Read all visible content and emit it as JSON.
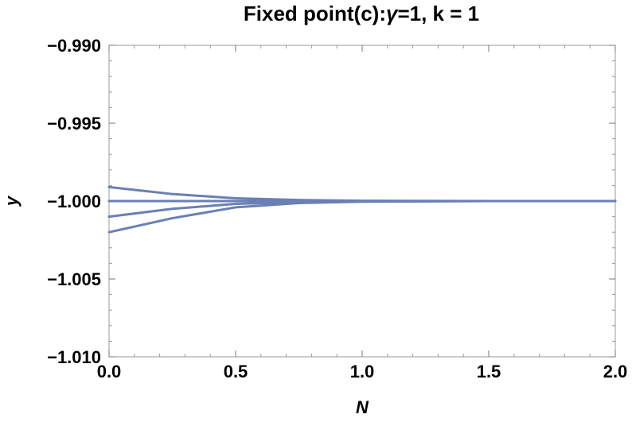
{
  "chart_data": {
    "type": "line",
    "title_main": "Fixed point(c):",
    "title_symbol": "γ",
    "title_rest": "=1, k = 1",
    "xlabel": "N",
    "ylabel": "y",
    "xlim": [
      0,
      2
    ],
    "ylim": [
      -1.01,
      -0.99
    ],
    "xticks": [
      0,
      0.5,
      1,
      1.5,
      2
    ],
    "xtick_labels": [
      "0.0",
      "0.5",
      "1.0",
      "1.5",
      "2.0"
    ],
    "yticks": [
      -0.99,
      -0.995,
      -1.0,
      -1.005,
      -1.01
    ],
    "ytick_labels": [
      "−0.990",
      "−0.995",
      "−1.000",
      "−1.005",
      "−1.010"
    ],
    "grid": false,
    "line_color": "#6a7fb3",
    "series": [
      {
        "x": [
          0,
          0.25,
          0.5,
          0.75,
          1.0,
          1.5,
          2.0
        ],
        "y": [
          -0.9991,
          -0.99955,
          -0.99982,
          -0.99993,
          -0.99998,
          -1.0,
          -1.0
        ]
      },
      {
        "x": [
          0,
          0.5,
          1.0,
          1.5,
          2.0
        ],
        "y": [
          -1.0,
          -1.0,
          -1.0,
          -1.0,
          -1.0
        ]
      },
      {
        "x": [
          0,
          0.25,
          0.5,
          0.75,
          1.0,
          1.5,
          2.0
        ],
        "y": [
          -1.001,
          -1.0005,
          -1.00018,
          -1.00007,
          -1.00002,
          -1.0,
          -1.0
        ]
      },
      {
        "x": [
          0,
          0.25,
          0.5,
          0.75,
          1.0,
          1.5,
          2.0
        ],
        "y": [
          -1.002,
          -1.0011,
          -1.0004,
          -1.00013,
          -1.00004,
          -1.0,
          -1.0
        ]
      }
    ]
  }
}
